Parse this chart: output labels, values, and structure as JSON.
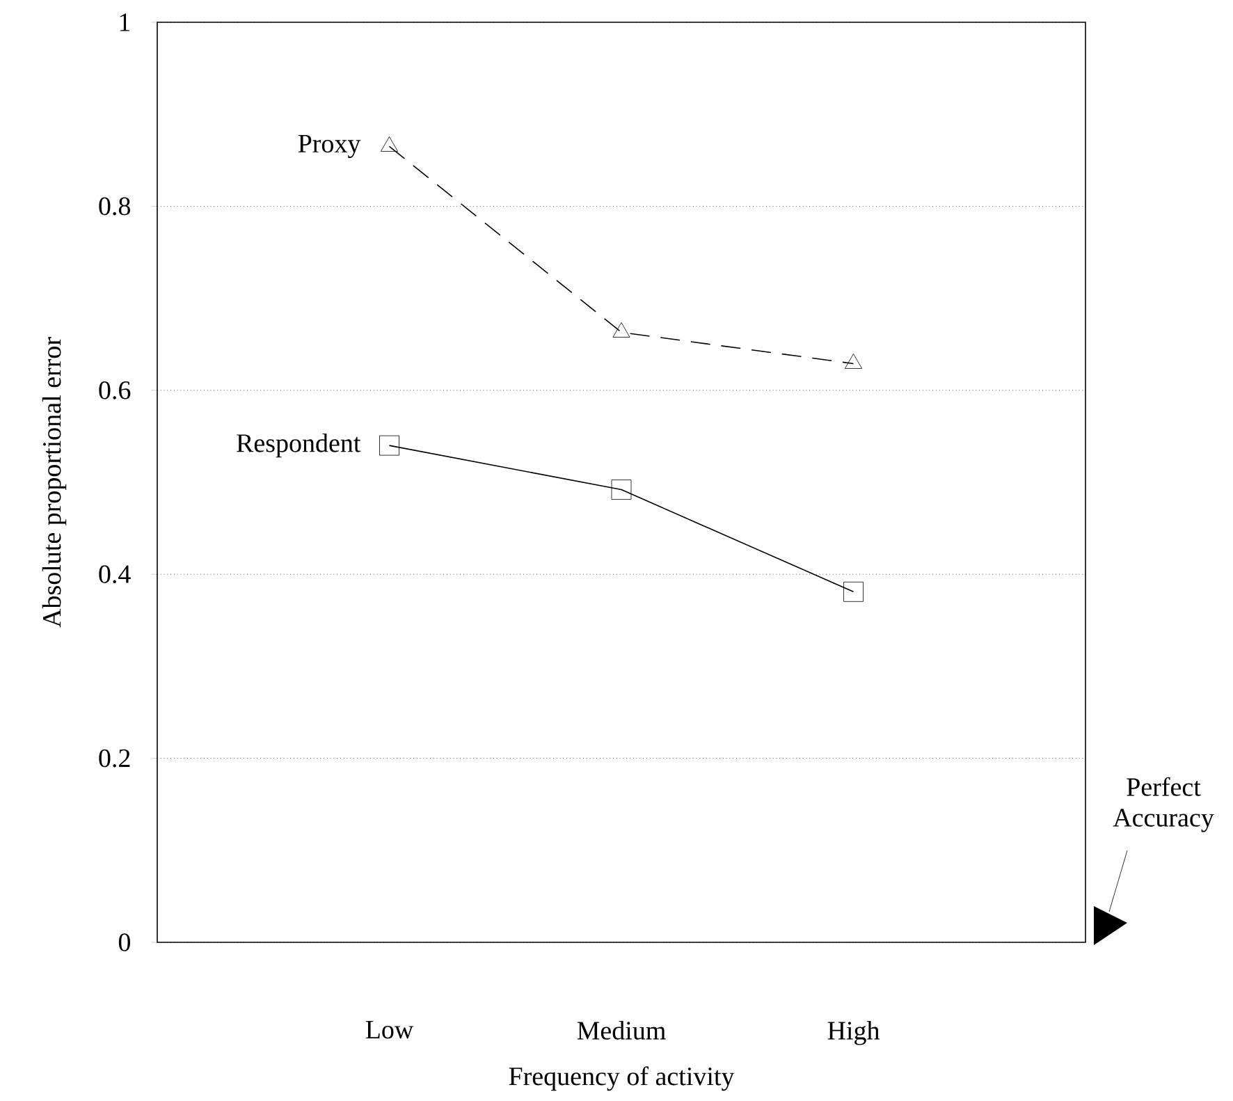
{
  "chart_data": {
    "type": "line",
    "xlabel": "Frequency of activity",
    "ylabel": "Absolute proportional error",
    "categories": [
      "Low",
      "Medium",
      "High"
    ],
    "series": [
      {
        "name": "Proxy",
        "color": "#000000",
        "values": [
          0.865,
          0.663,
          0.629
        ],
        "marker": "triangle",
        "line_style": "dashed"
      },
      {
        "name": "Respondent",
        "color": "#000000",
        "values": [
          0.54,
          0.492,
          0.381
        ],
        "marker": "square",
        "line_style": "solid"
      }
    ],
    "ylim": [
      0,
      1
    ],
    "yticks": [
      0,
      0.2,
      0.4,
      0.6,
      0.8,
      1
    ],
    "grid": "y",
    "annotations": [
      "Perfect Accuracy"
    ]
  }
}
